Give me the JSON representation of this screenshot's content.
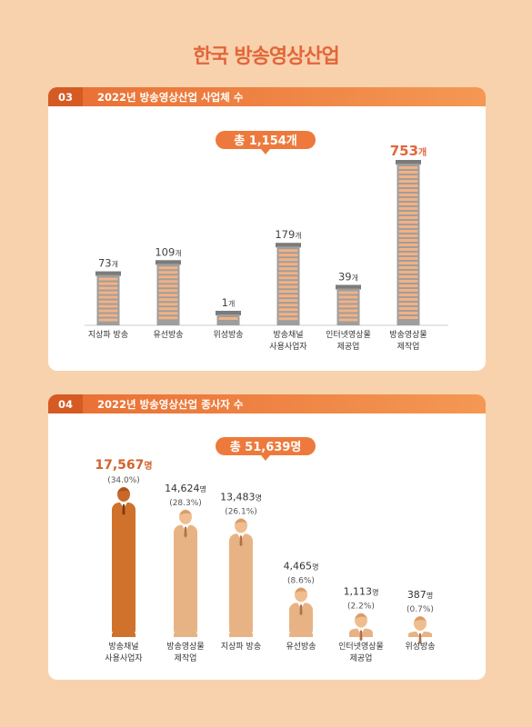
{
  "page_title": "한국 방송영상산업",
  "colors": {
    "accent": "#e2663a",
    "bar_dark": "#d0712c",
    "bar_light": "#e8b384",
    "figure_light": "#f0bd8f",
    "background": "#f8d2ad"
  },
  "panels": [
    {
      "number": "03",
      "title": "2022년 방송영상산업 사업체 수",
      "total_label": "총 1,154개",
      "unit": "개"
    },
    {
      "number": "04",
      "title": "2022년 방송영상산업 종사자 수",
      "total_label": "총 51,639명",
      "unit": "명"
    }
  ],
  "chart_data": [
    {
      "type": "bar",
      "title": "2022년 방송영상산업 사업체 수",
      "categories": [
        "지상파 방송",
        "유선방송",
        "위성방송",
        "방송채널\n사용사업자",
        "인터넷영상물\n제공업",
        "방송영상물\n제작업"
      ],
      "values": [
        73,
        109,
        1,
        179,
        39,
        753
      ],
      "value_labels": [
        "73",
        "109",
        "1",
        "179",
        "39",
        "753"
      ],
      "total": "총 1,154개",
      "unit": "개",
      "highlight_index": 5
    },
    {
      "type": "bar",
      "title": "2022년 방송영상산업 종사자 수",
      "categories": [
        "방송채널\n사용사업자",
        "방송영상물\n제작업",
        "지상파 방송",
        "유선방송",
        "인터넷영상물\n제공업",
        "위성방송"
      ],
      "values": [
        17567,
        14624,
        13483,
        4465,
        1113,
        387
      ],
      "value_labels": [
        "17,567",
        "14,624",
        "13,483",
        "4,465",
        "1,113",
        "387"
      ],
      "percent_labels": [
        "(34.0%)",
        "(28.3%)",
        "(26.1%)",
        "(8.6%)",
        "(2.2%)",
        "(0.7%)"
      ],
      "total": "총 51,639명",
      "unit": "명",
      "highlight_index": 0
    }
  ]
}
